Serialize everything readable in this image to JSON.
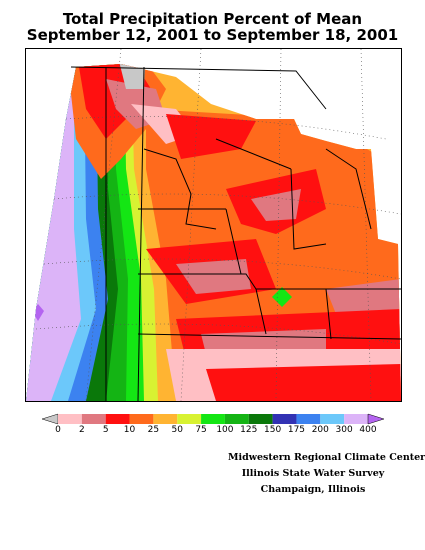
{
  "header": {
    "title_line1": "Total Precipitation Percent of Mean",
    "title_line2": "September 12, 2001 to September 18, 2001"
  },
  "legend": {
    "labels": [
      "0",
      "2",
      "5",
      "10",
      "25",
      "50",
      "75",
      "100",
      "125",
      "150",
      "175",
      "200",
      "300",
      "400"
    ],
    "colors": [
      "#c8c8c8",
      "#ffbfc4",
      "#e07880",
      "#ff1010",
      "#ff6a1c",
      "#ffb432",
      "#d8f232",
      "#14e614",
      "#14b414",
      "#0a780a",
      "#3232b4",
      "#3c82f0",
      "#6cc8fa",
      "#dcb4f8",
      "#b464f0"
    ]
  },
  "credits": {
    "line1": "Midwestern Regional Climate Center",
    "line2": "Illinois State Water Survey",
    "line3": "Champaign, Illinois"
  }
}
